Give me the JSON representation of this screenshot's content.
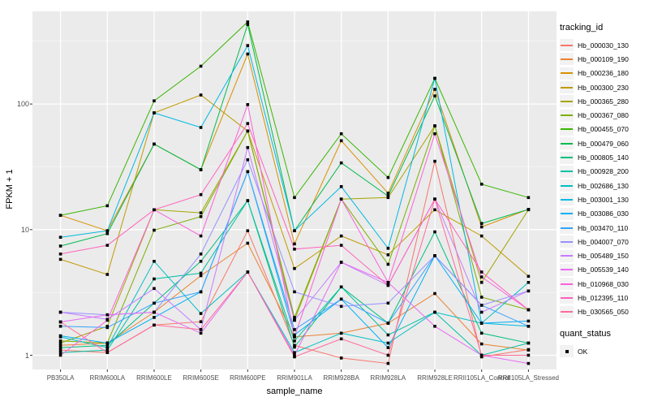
{
  "chart_data": {
    "type": "line",
    "xlabel": "sample_name",
    "ylabel": "FPKM + 1",
    "y_scale": "log10",
    "y_ticks": [
      1,
      10,
      100
    ],
    "y_minor_ticks": [
      3.162,
      31.62,
      316.2
    ],
    "ylim": [
      0.77,
      550
    ],
    "grid": "on",
    "panel_bg": "#EBEBEB",
    "grid_color": "#FFFFFF",
    "point_color": "#000000",
    "legend": {
      "title": "tracking_id",
      "position": "right"
    },
    "quant_legend": {
      "title": "quant_status",
      "items": [
        {
          "label": "OK"
        }
      ]
    },
    "categories": [
      "PB350LA",
      "RRIM600LA",
      "RRIM600LE",
      "RRIM600SE",
      "RRIM600PE",
      "RRIM901LA",
      "RRIM928BA",
      "RRIM928LA",
      "RRIM928LE",
      "RRII105LA_Control",
      "RRII105LA_Stressed"
    ],
    "series": [
      {
        "name": "Hb_000030_130",
        "color": "#F8766D",
        "values": [
          1.1,
          1.05,
          1.74,
          1.85,
          9.8,
          1.2,
          0.95,
          0.86,
          35,
          0.97,
          1.11
        ]
      },
      {
        "name": "Hb_000109_190",
        "color": "#EA8331",
        "values": [
          1.2,
          1.25,
          2.2,
          4.3,
          7.8,
          1.4,
          1.5,
          1.8,
          3.1,
          1.23,
          1.1
        ]
      },
      {
        "name": "Hb_000236_180",
        "color": "#D89000",
        "values": [
          13,
          9.8,
          48,
          30,
          250,
          7.7,
          51,
          19.5,
          131,
          10.5,
          14.5
        ]
      },
      {
        "name": "Hb_000300_230",
        "color": "#C09B00",
        "values": [
          5.8,
          4.4,
          85,
          118,
          61,
          4.9,
          8.9,
          6.3,
          14.4,
          8.9,
          4.25
        ]
      },
      {
        "name": "Hb_000365_280",
        "color": "#A3A500",
        "values": [
          1.25,
          1.7,
          14.4,
          13.6,
          61,
          1.9,
          17.5,
          18,
          67,
          3.8,
          14.4
        ]
      },
      {
        "name": "Hb_000367_080",
        "color": "#7CAE00",
        "values": [
          1.3,
          1.25,
          9.9,
          12.7,
          61,
          2.0,
          17.5,
          5.3,
          67,
          2.9,
          2.3
        ]
      },
      {
        "name": "Hb_000455_070",
        "color": "#39B600",
        "values": [
          13,
          15.5,
          106,
          200,
          450,
          18,
          58,
          26,
          160,
          23,
          18
        ]
      },
      {
        "name": "Hb_000479_060",
        "color": "#00BB4E",
        "values": [
          7.4,
          9.3,
          48,
          30,
          430,
          9.8,
          34,
          18.5,
          116,
          11.2,
          14.5
        ]
      },
      {
        "name": "Hb_000805_140",
        "color": "#00BF7D",
        "values": [
          1.15,
          1.2,
          2.6,
          5.6,
          17,
          1.16,
          3.5,
          1.8,
          9.6,
          1.5,
          1.25
        ]
      },
      {
        "name": "Hb_000928_200",
        "color": "#00C1A3",
        "values": [
          1.05,
          1.1,
          4.05,
          4.5,
          17,
          1.3,
          3.5,
          1.45,
          2.2,
          1.0,
          1.25
        ]
      },
      {
        "name": "Hb_002686_130",
        "color": "#00BFC4",
        "values": [
          1.4,
          1.15,
          5.6,
          2.15,
          4.6,
          1.05,
          1.5,
          1.25,
          2.2,
          1.8,
          3.8
        ]
      },
      {
        "name": "Hb_003001_130",
        "color": "#00BAE0",
        "values": [
          8.7,
          9.8,
          85,
          65,
          292,
          9.8,
          22,
          7.1,
          160,
          1.8,
          1.7
        ]
      },
      {
        "name": "Hb_003086_030",
        "color": "#00B0F6",
        "values": [
          1.43,
          1.25,
          2.0,
          3.2,
          29,
          1.45,
          2.8,
          1.15,
          6.2,
          1.8,
          1.87
        ]
      },
      {
        "name": "Hb_003470_110",
        "color": "#35A2FF",
        "values": [
          1.7,
          1.66,
          2.6,
          3.2,
          29,
          1.6,
          2.8,
          1.8,
          6.2,
          2.5,
          1.7
        ]
      },
      {
        "name": "Hb_004007_070",
        "color": "#9590FF",
        "values": [
          2.2,
          2.1,
          2.2,
          6.4,
          36,
          3.2,
          2.45,
          2.6,
          6.2,
          2.5,
          3.25
        ]
      },
      {
        "name": "Hb_005489_150",
        "color": "#C77CFF",
        "values": [
          2.2,
          1.93,
          3.4,
          1.6,
          45,
          1.9,
          5.5,
          3.6,
          17.5,
          2.2,
          3.25
        ]
      },
      {
        "name": "Hb_005539_140",
        "color": "#E76BF3",
        "values": [
          1.84,
          2.1,
          2.2,
          1.5,
          4.6,
          1.0,
          5.5,
          3.8,
          1.7,
          1.0,
          0.86
        ]
      },
      {
        "name": "Hb_010968_030",
        "color": "#FA62DB",
        "values": [
          1.0,
          1.9,
          14.4,
          8.9,
          99,
          1.4,
          17.5,
          3.8,
          58,
          4.2,
          2.3
        ]
      },
      {
        "name": "Hb_012395_110",
        "color": "#FF62BC",
        "values": [
          6.4,
          7.5,
          14.4,
          19,
          70,
          7.0,
          7.5,
          3.6,
          17.5,
          4.6,
          2.3
        ]
      },
      {
        "name": "Hb_030565_050",
        "color": "#FF6A98",
        "values": [
          1.84,
          1.05,
          1.74,
          1.6,
          4.6,
          0.97,
          1.35,
          1.0,
          17.5,
          1.0,
          1.0
        ]
      }
    ]
  }
}
